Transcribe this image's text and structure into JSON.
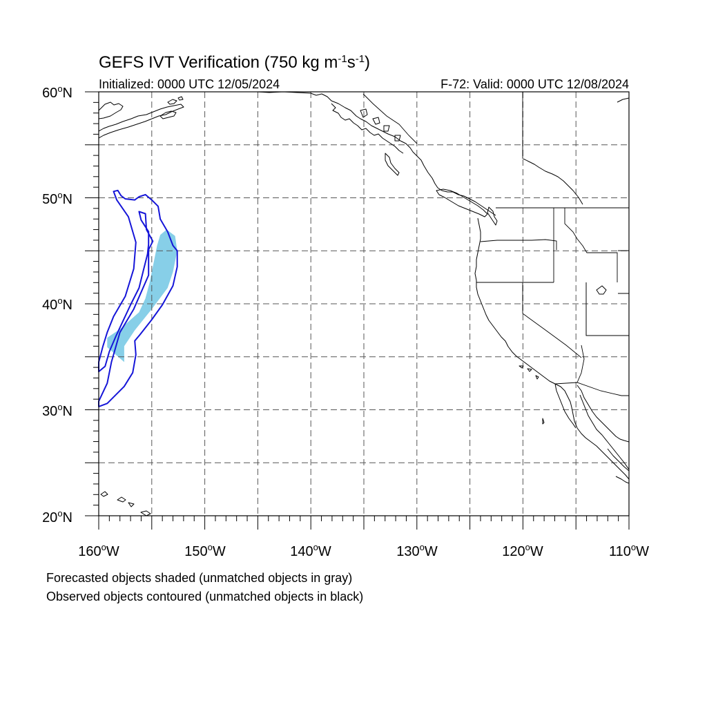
{
  "title": {
    "main": "GEFS IVT Verification (750 kg m",
    "exp1": "-1",
    "mid": "s",
    "exp2": "-1",
    "close": ")"
  },
  "subtitle_left": "Initialized: 0000 UTC 12/05/2024",
  "subtitle_right": "F-72: Valid: 0000 UTC 12/08/2024",
  "latitude_labels": [
    "60",
    "50",
    "40",
    "30",
    "20"
  ],
  "latitude_suffix": "N",
  "longitude_labels": [
    "160",
    "150",
    "140",
    "130",
    "120",
    "110"
  ],
  "longitude_suffix": "W",
  "degree_symbol": "o",
  "footnotes": [
    "Forecasted objects shaded (unmatched objects in gray)",
    "Observed objects contoured (unmatched objects in black)"
  ],
  "map": {
    "lat_range": [
      20,
      60
    ],
    "lon_range": [
      -160,
      -110
    ],
    "gridline_spacing_deg": 5,
    "colors": {
      "forecast_object": "#87cfe8",
      "observed_object": "#1515d8",
      "coastline": "#000000",
      "gridline": "#555555"
    }
  },
  "forecast_object": {
    "matched": true,
    "outline_lonlat": [
      [
        -157.6,
        34.5
      ],
      [
        -159.2,
        35.9
      ],
      [
        -159.2,
        36.8
      ],
      [
        -158.0,
        37.6
      ],
      [
        -156.2,
        39.2
      ],
      [
        -155.6,
        40.5
      ],
      [
        -155.2,
        42.0
      ],
      [
        -154.8,
        44.0
      ],
      [
        -154.5,
        45.5
      ],
      [
        -154.2,
        46.5
      ],
      [
        -153.6,
        47.0
      ],
      [
        -152.8,
        46.4
      ],
      [
        -152.6,
        45.0
      ],
      [
        -153.0,
        43.0
      ],
      [
        -153.5,
        41.5
      ],
      [
        -155.0,
        39.5
      ],
      [
        -156.6,
        37.5
      ],
      [
        -157.6,
        36.0
      ]
    ]
  },
  "observed_object": {
    "matched": true,
    "outline_lonlat": [
      [
        -160.0,
        30.3
      ],
      [
        -159.2,
        30.6
      ],
      [
        -157.6,
        32.2
      ],
      [
        -156.8,
        33.5
      ],
      [
        -156.5,
        35.2
      ],
      [
        -156.6,
        36.5
      ],
      [
        -156.1,
        37.1
      ],
      [
        -155.0,
        38.5
      ],
      [
        -154.0,
        39.9
      ],
      [
        -153.0,
        41.7
      ],
      [
        -152.6,
        43.5
      ],
      [
        -152.6,
        45.0
      ],
      [
        -153.0,
        45.5
      ],
      [
        -153.5,
        46.8
      ],
      [
        -154.2,
        48.0
      ],
      [
        -154.4,
        49.2
      ],
      [
        -155.0,
        49.8
      ],
      [
        -155.6,
        50.3
      ],
      [
        -156.2,
        50.1
      ],
      [
        -156.6,
        49.8
      ],
      [
        -157.5,
        49.9
      ],
      [
        -157.9,
        50.2
      ],
      [
        -158.2,
        50.7
      ],
      [
        -158.6,
        50.6
      ],
      [
        -158.3,
        49.8
      ],
      [
        -157.2,
        48.2
      ],
      [
        -156.5,
        45.8
      ],
      [
        -156.7,
        43.3
      ],
      [
        -157.5,
        40.7
      ],
      [
        -158.6,
        38.8
      ],
      [
        -159.2,
        37.3
      ],
      [
        -159.6,
        36.0
      ],
      [
        -160.0,
        34.5
      ],
      [
        -160.0,
        33.6
      ],
      [
        -159.4,
        34.1
      ],
      [
        -159.0,
        35.5
      ],
      [
        -158.4,
        36.9
      ],
      [
        -157.7,
        38.4
      ],
      [
        -157.0,
        39.9
      ],
      [
        -156.2,
        41.5
      ],
      [
        -155.8,
        43.1
      ],
      [
        -155.4,
        44.7
      ],
      [
        -155.3,
        45.6
      ],
      [
        -155.3,
        46.8
      ],
      [
        -156.0,
        47.9
      ],
      [
        -156.2,
        48.7
      ],
      [
        -155.6,
        48.5
      ],
      [
        -155.5,
        47.0
      ],
      [
        -154.9,
        45.9
      ],
      [
        -155.3,
        45.1
      ],
      [
        -155.3,
        42.7
      ],
      [
        -156.7,
        39.5
      ],
      [
        -158.0,
        37.3
      ],
      [
        -158.8,
        34.5
      ],
      [
        -159.2,
        32.5
      ],
      [
        -160.0,
        30.8
      ]
    ]
  }
}
